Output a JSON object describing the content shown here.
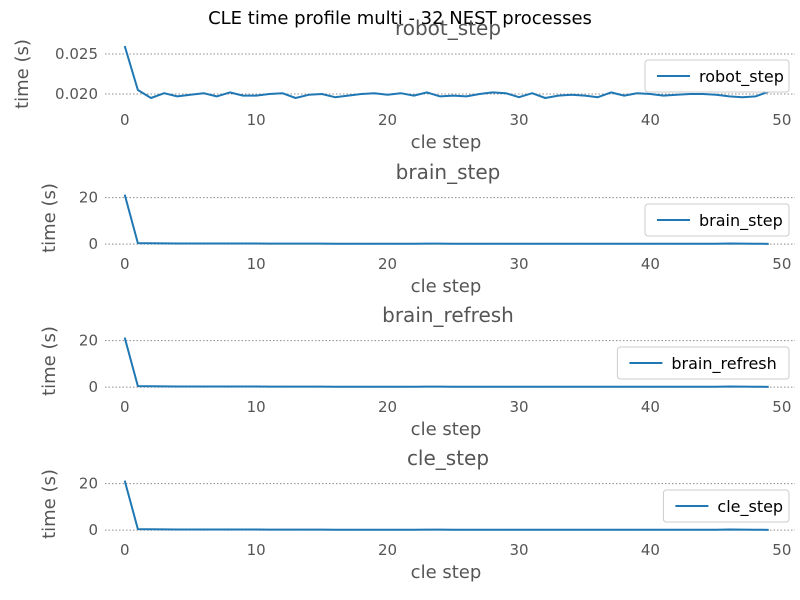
{
  "figure": {
    "suptitle": "CLE time profile multi - 32 NEST processes"
  },
  "colors": {
    "line": "#1f77b4",
    "grid": "#8c8c8c",
    "tick_text": "#555555",
    "title_text": "#555555"
  },
  "chart_data": [
    {
      "type": "line",
      "title": "robot_step",
      "xlabel": "cle step",
      "ylabel": "time (s)",
      "legend_position": "top-right",
      "grid": "horizontal dotted",
      "xlim": [
        -1.5,
        51
      ],
      "ylim": [
        0.0185,
        0.0265
      ],
      "xticks": [
        0,
        10,
        20,
        30,
        40,
        50
      ],
      "yticks": [
        0.02,
        0.025
      ],
      "ytick_labels": [
        "0.020",
        "0.025"
      ],
      "series": [
        {
          "name": "robot_step",
          "x": [
            0,
            1,
            2,
            3,
            4,
            5,
            6,
            7,
            8,
            9,
            10,
            11,
            12,
            13,
            14,
            15,
            16,
            17,
            18,
            19,
            20,
            21,
            22,
            23,
            24,
            25,
            26,
            27,
            28,
            29,
            30,
            31,
            32,
            33,
            34,
            35,
            36,
            37,
            38,
            39,
            40,
            41,
            42,
            43,
            44,
            45,
            46,
            47,
            48,
            49
          ],
          "y": [
            0.026,
            0.0205,
            0.0195,
            0.0201,
            0.0197,
            0.0199,
            0.0201,
            0.0197,
            0.0202,
            0.0198,
            0.0198,
            0.02,
            0.0201,
            0.0195,
            0.0199,
            0.02,
            0.0196,
            0.0198,
            0.02,
            0.0201,
            0.0199,
            0.0201,
            0.0198,
            0.0202,
            0.0197,
            0.0198,
            0.0197,
            0.02,
            0.0202,
            0.0201,
            0.0196,
            0.0201,
            0.0195,
            0.0198,
            0.0199,
            0.0198,
            0.0196,
            0.0202,
            0.0198,
            0.0201,
            0.02,
            0.0198,
            0.0199,
            0.02,
            0.02,
            0.0199,
            0.0197,
            0.0196,
            0.0197,
            0.0203
          ]
        }
      ]
    },
    {
      "type": "line",
      "title": "brain_step",
      "xlabel": "cle step",
      "ylabel": "time (s)",
      "legend_position": "top-right",
      "grid": "horizontal dotted",
      "xlim": [
        -1.5,
        51
      ],
      "ylim": [
        -2.5,
        25
      ],
      "xticks": [
        0,
        10,
        20,
        30,
        40,
        50
      ],
      "yticks": [
        0,
        20
      ],
      "ytick_labels": [
        "0",
        "20"
      ],
      "series": [
        {
          "name": "brain_step",
          "x": [
            0,
            1,
            2,
            3,
            4,
            5,
            6,
            7,
            8,
            9,
            10,
            11,
            12,
            13,
            14,
            15,
            16,
            17,
            18,
            19,
            20,
            21,
            22,
            23,
            24,
            25,
            26,
            27,
            28,
            29,
            30,
            31,
            32,
            33,
            34,
            35,
            36,
            37,
            38,
            39,
            40,
            41,
            42,
            43,
            44,
            45,
            46,
            47,
            48,
            49
          ],
          "y": [
            21.3,
            0.45,
            0.4,
            0.35,
            0.3,
            0.3,
            0.3,
            0.28,
            0.3,
            0.28,
            0.3,
            0.25,
            0.25,
            0.25,
            0.25,
            0.25,
            0.2,
            0.2,
            0.2,
            0.2,
            0.2,
            0.2,
            0.2,
            0.25,
            0.22,
            0.2,
            0.2,
            0.2,
            0.2,
            0.2,
            0.2,
            0.2,
            0.2,
            0.2,
            0.2,
            0.2,
            0.2,
            0.2,
            0.2,
            0.2,
            0.2,
            0.2,
            0.2,
            0.2,
            0.2,
            0.2,
            0.3,
            0.25,
            0.2,
            0.15
          ]
        }
      ]
    },
    {
      "type": "line",
      "title": "brain_refresh",
      "xlabel": "cle step",
      "ylabel": "time (s)",
      "legend_position": "top-right",
      "grid": "horizontal dotted",
      "xlim": [
        -1.5,
        51
      ],
      "ylim": [
        -2.5,
        25
      ],
      "xticks": [
        0,
        10,
        20,
        30,
        40,
        50
      ],
      "yticks": [
        0,
        20
      ],
      "ytick_labels": [
        "0",
        "20"
      ],
      "series": [
        {
          "name": "brain_refresh",
          "x": [
            0,
            1,
            2,
            3,
            4,
            5,
            6,
            7,
            8,
            9,
            10,
            11,
            12,
            13,
            14,
            15,
            16,
            17,
            18,
            19,
            20,
            21,
            22,
            23,
            24,
            25,
            26,
            27,
            28,
            29,
            30,
            31,
            32,
            33,
            34,
            35,
            36,
            37,
            38,
            39,
            40,
            41,
            42,
            43,
            44,
            45,
            46,
            47,
            48,
            49
          ],
          "y": [
            21.3,
            0.45,
            0.4,
            0.35,
            0.3,
            0.3,
            0.3,
            0.28,
            0.3,
            0.28,
            0.3,
            0.25,
            0.25,
            0.25,
            0.25,
            0.25,
            0.2,
            0.2,
            0.2,
            0.2,
            0.2,
            0.2,
            0.2,
            0.25,
            0.22,
            0.2,
            0.2,
            0.2,
            0.2,
            0.2,
            0.2,
            0.2,
            0.2,
            0.2,
            0.2,
            0.2,
            0.2,
            0.2,
            0.2,
            0.2,
            0.2,
            0.2,
            0.2,
            0.2,
            0.2,
            0.2,
            0.3,
            0.25,
            0.2,
            0.15
          ]
        }
      ]
    },
    {
      "type": "line",
      "title": "cle_step",
      "xlabel": "cle step",
      "ylabel": "time (s)",
      "legend_position": "top-right",
      "grid": "horizontal dotted",
      "xlim": [
        -1.5,
        51
      ],
      "ylim": [
        -2.5,
        25
      ],
      "xticks": [
        0,
        10,
        20,
        30,
        40,
        50
      ],
      "yticks": [
        0,
        20
      ],
      "ytick_labels": [
        "0",
        "20"
      ],
      "series": [
        {
          "name": "cle_step",
          "x": [
            0,
            1,
            2,
            3,
            4,
            5,
            6,
            7,
            8,
            9,
            10,
            11,
            12,
            13,
            14,
            15,
            16,
            17,
            18,
            19,
            20,
            21,
            22,
            23,
            24,
            25,
            26,
            27,
            28,
            29,
            30,
            31,
            32,
            33,
            34,
            35,
            36,
            37,
            38,
            39,
            40,
            41,
            42,
            43,
            44,
            45,
            46,
            47,
            48,
            49
          ],
          "y": [
            21.3,
            0.45,
            0.4,
            0.35,
            0.3,
            0.3,
            0.3,
            0.28,
            0.3,
            0.28,
            0.3,
            0.25,
            0.25,
            0.25,
            0.25,
            0.25,
            0.2,
            0.2,
            0.2,
            0.2,
            0.2,
            0.2,
            0.2,
            0.25,
            0.22,
            0.2,
            0.2,
            0.2,
            0.2,
            0.2,
            0.2,
            0.2,
            0.2,
            0.2,
            0.2,
            0.2,
            0.2,
            0.2,
            0.2,
            0.2,
            0.2,
            0.2,
            0.2,
            0.2,
            0.2,
            0.2,
            0.3,
            0.25,
            0.2,
            0.15
          ]
        }
      ]
    }
  ]
}
